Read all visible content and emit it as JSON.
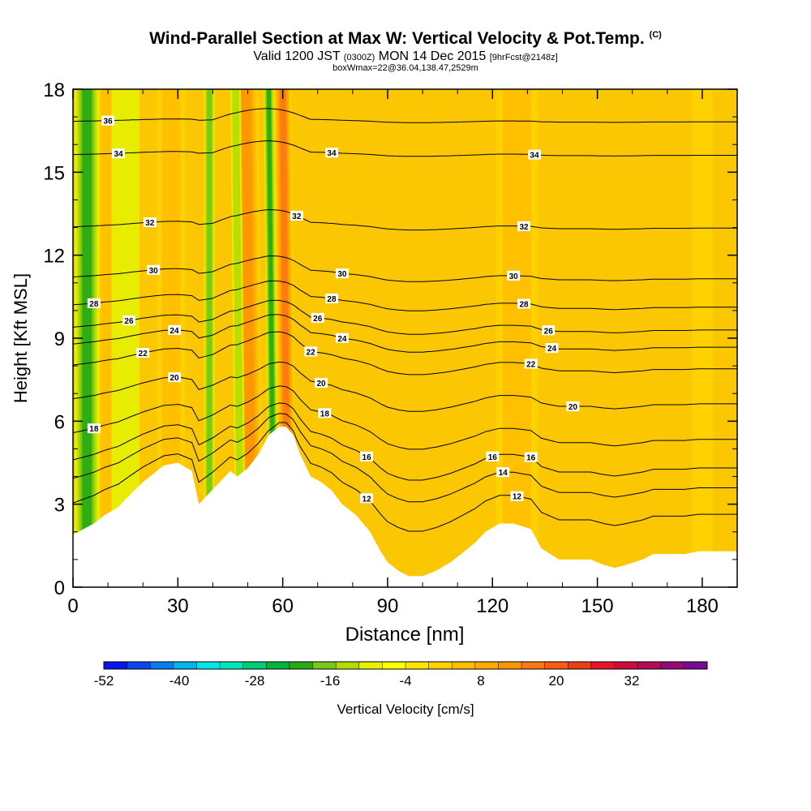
{
  "header": {
    "title": "Wind-Parallel Section at Max W: Vertical Velocity & Pot.Temp.",
    "copyright": "(C)",
    "subtitle_valid": "Valid 1200 JST",
    "subtitle_utc": "(0300Z)",
    "subtitle_date": "MON 14 Dec 2015",
    "subtitle_fcst": "[9hrFcst@2148z]",
    "subtitle2": "boxWmax=22@36.04,138.47,2529m"
  },
  "colors": {
    "background_field": "#fbc602",
    "terrain": "#ffffff",
    "contour": "#000000",
    "colorbar": [
      "#0a14f0",
      "#0a46f0",
      "#0a7df0",
      "#00b4f0",
      "#00e6e6",
      "#00e6b4",
      "#00cc78",
      "#00b43c",
      "#28aa14",
      "#78c814",
      "#b4dc00",
      "#e6f000",
      "#ffff00",
      "#ffe600",
      "#ffd200",
      "#ffbe00",
      "#ffaa00",
      "#ff9600",
      "#ff7814",
      "#ff5a14",
      "#f03c14",
      "#e61428",
      "#d20a3c",
      "#b40a5a",
      "#960a78",
      "#780a96"
    ]
  },
  "chart_data": {
    "type": "heatmap",
    "xlabel": "Distance [nm]",
    "ylabel": "Height [Kft MSL]",
    "xlim": [
      0,
      190
    ],
    "ylim": [
      0,
      18
    ],
    "xticks": [
      0,
      30,
      60,
      90,
      120,
      150,
      180
    ],
    "yticks": [
      0,
      3,
      6,
      9,
      12,
      15,
      18
    ],
    "colorbar": {
      "label": "Vertical Velocity [cm/s]",
      "ticks": [
        -52,
        -40,
        -28,
        -16,
        -4,
        8,
        20,
        32
      ],
      "min": -52,
      "max": 44,
      "step": 4
    },
    "terrain_profile": {
      "x": [
        0,
        6,
        9,
        13,
        16,
        20,
        23,
        26,
        30,
        34,
        36,
        39,
        42,
        45,
        47,
        50,
        53,
        56,
        59,
        61,
        63,
        65,
        68,
        71,
        74,
        77,
        81,
        83,
        85,
        88,
        90,
        93,
        96,
        100,
        104,
        108,
        111,
        115,
        118,
        122,
        126,
        131,
        134,
        139,
        143,
        148,
        152,
        155,
        158,
        163,
        166,
        170,
        175,
        179,
        183,
        186,
        190
      ],
      "height_kft": [
        1.9,
        2.3,
        2.6,
        2.9,
        3.3,
        3.8,
        4.1,
        4.4,
        4.5,
        4.2,
        3.0,
        3.4,
        3.8,
        4.2,
        4.0,
        4.3,
        4.8,
        5.5,
        5.8,
        5.8,
        5.5,
        4.8,
        4.0,
        3.8,
        3.5,
        3.0,
        2.6,
        2.3,
        2.0,
        1.3,
        0.9,
        0.6,
        0.4,
        0.4,
        0.6,
        0.9,
        1.2,
        1.6,
        2.0,
        2.3,
        2.3,
        2.1,
        1.4,
        1.0,
        1.0,
        1.0,
        0.8,
        0.7,
        0.8,
        1.0,
        1.2,
        1.2,
        1.2,
        1.3,
        1.3,
        1.3,
        1.3
      ]
    },
    "updrafts": [
      {
        "x_center": 51,
        "x_halfwidth": 3.5,
        "w_cm_s": 16
      },
      {
        "x_center": 61.5,
        "x_halfwidth": 2.5,
        "w_cm_s": 20
      },
      {
        "x_center": 10,
        "x_halfwidth": 3,
        "w_cm_s": 8
      },
      {
        "x_center": 28,
        "x_halfwidth": 4,
        "w_cm_s": 6
      },
      {
        "x_center": 127,
        "x_halfwidth": 6,
        "w_cm_s": 6
      },
      {
        "x_center": 180,
        "x_halfwidth": 3,
        "w_cm_s": 4
      }
    ],
    "downdrafts": [
      {
        "x_center": 4,
        "x_halfwidth": 3.5,
        "w_cm_s": -16
      },
      {
        "x_center": 39,
        "x_halfwidth": 1.5,
        "w_cm_s": -12
      },
      {
        "x_center": 57.5,
        "x_halfwidth": 1.5,
        "w_cm_s": -16
      },
      {
        "x_center": 48,
        "x_halfwidth": 1.5,
        "w_cm_s": -8
      },
      {
        "x_center": 15,
        "x_halfwidth": 4,
        "w_cm_s": -4
      }
    ],
    "isentropes": [
      {
        "label": "12",
        "level": 3.25,
        "labels_at": [
          84,
          127
        ]
      },
      {
        "label": "14",
        "level": 4.1,
        "labels_at": [
          123
        ]
      },
      {
        "label": "16",
        "level": 4.75,
        "labels_at": [
          84,
          120,
          131
        ]
      },
      {
        "label": "18",
        "level": 5.7,
        "labels_at": [
          6,
          72
        ]
      },
      {
        "label": "20",
        "level": 6.9,
        "labels_at": [
          29,
          71,
          143
        ]
      },
      {
        "label": "22",
        "level": 8.1,
        "labels_at": [
          20,
          68,
          131
        ]
      },
      {
        "label": "24",
        "level": 8.85,
        "labels_at": [
          29,
          77,
          137
        ]
      },
      {
        "label": "26",
        "level": 9.45,
        "labels_at": [
          16,
          70,
          136
        ]
      },
      {
        "label": "28",
        "level": 10.25,
        "labels_at": [
          6,
          74,
          129
        ]
      },
      {
        "label": "30",
        "level": 11.25,
        "labels_at": [
          23,
          77,
          126
        ]
      },
      {
        "label": "32",
        "level": 13.05,
        "labels_at": [
          22,
          64,
          129
        ]
      },
      {
        "label": "34",
        "level": 15.65,
        "labels_at": [
          13,
          74,
          132
        ]
      },
      {
        "label": "36",
        "level": 16.85,
        "labels_at": [
          10
        ]
      }
    ]
  }
}
